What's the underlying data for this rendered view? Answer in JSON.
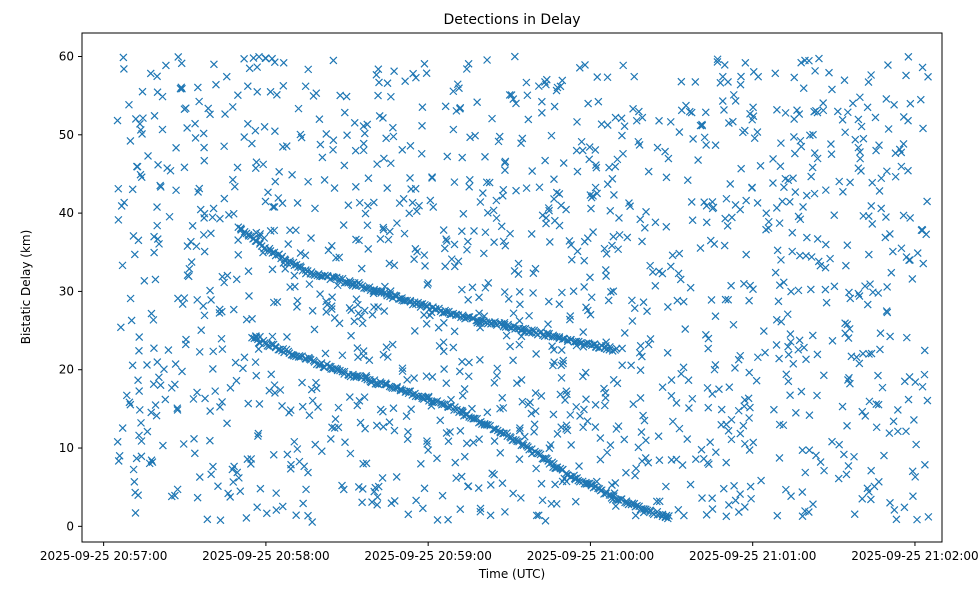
{
  "chart_data": {
    "type": "scatter",
    "title": "Detections in Delay",
    "xlabel": "Time (UTC)",
    "ylabel": "Bistatic Delay (km)",
    "marker": "x",
    "color": "#1f77b4",
    "grid": false,
    "legend": "none",
    "xlim": [
      "2025-09-25 20:56:52",
      "2025-09-25 21:02:10"
    ],
    "ylim": [
      -2,
      63
    ],
    "x_ticks": [
      "2025-09-25 20:57:00",
      "2025-09-25 20:58:00",
      "2025-09-25 20:59:00",
      "2025-09-25 21:00:00",
      "2025-09-25 21:01:00",
      "2025-09-25 21:02:00"
    ],
    "y_ticks": [
      0,
      10,
      20,
      30,
      40,
      50,
      60
    ],
    "tracks": [
      {
        "description_from_plot": "upper diagonal track",
        "points": [
          [
            "2025-09-25 20:57:50",
            38.0
          ],
          [
            "2025-09-25 20:58:00",
            35.5
          ],
          [
            "2025-09-25 20:58:15",
            32.5
          ],
          [
            "2025-09-25 20:58:35",
            30.8
          ],
          [
            "2025-09-25 20:58:50",
            29.0
          ],
          [
            "2025-09-25 20:59:10",
            27.0
          ],
          [
            "2025-09-25 20:59:30",
            25.5
          ],
          [
            "2025-09-25 20:59:50",
            24.0
          ],
          [
            "2025-09-25 21:00:10",
            22.5
          ]
        ]
      },
      {
        "description_from_plot": "middle diagonal track",
        "points": [
          [
            "2025-09-25 20:57:55",
            24.0
          ],
          [
            "2025-09-25 20:58:10",
            22.0
          ],
          [
            "2025-09-25 20:58:30",
            19.5
          ],
          [
            "2025-09-25 20:58:50",
            17.5
          ],
          [
            "2025-09-25 20:59:10",
            15.0
          ],
          [
            "2025-09-25 20:59:30",
            11.5
          ],
          [
            "2025-09-25 20:59:50",
            7.0
          ],
          [
            "2025-09-25 21:00:10",
            3.5
          ],
          [
            "2025-09-25 21:00:30",
            1.0
          ]
        ]
      }
    ],
    "background_clutter_points_estimated": 1400,
    "background_clutter_delay_range": [
      0.5,
      60
    ],
    "seed": 7
  }
}
